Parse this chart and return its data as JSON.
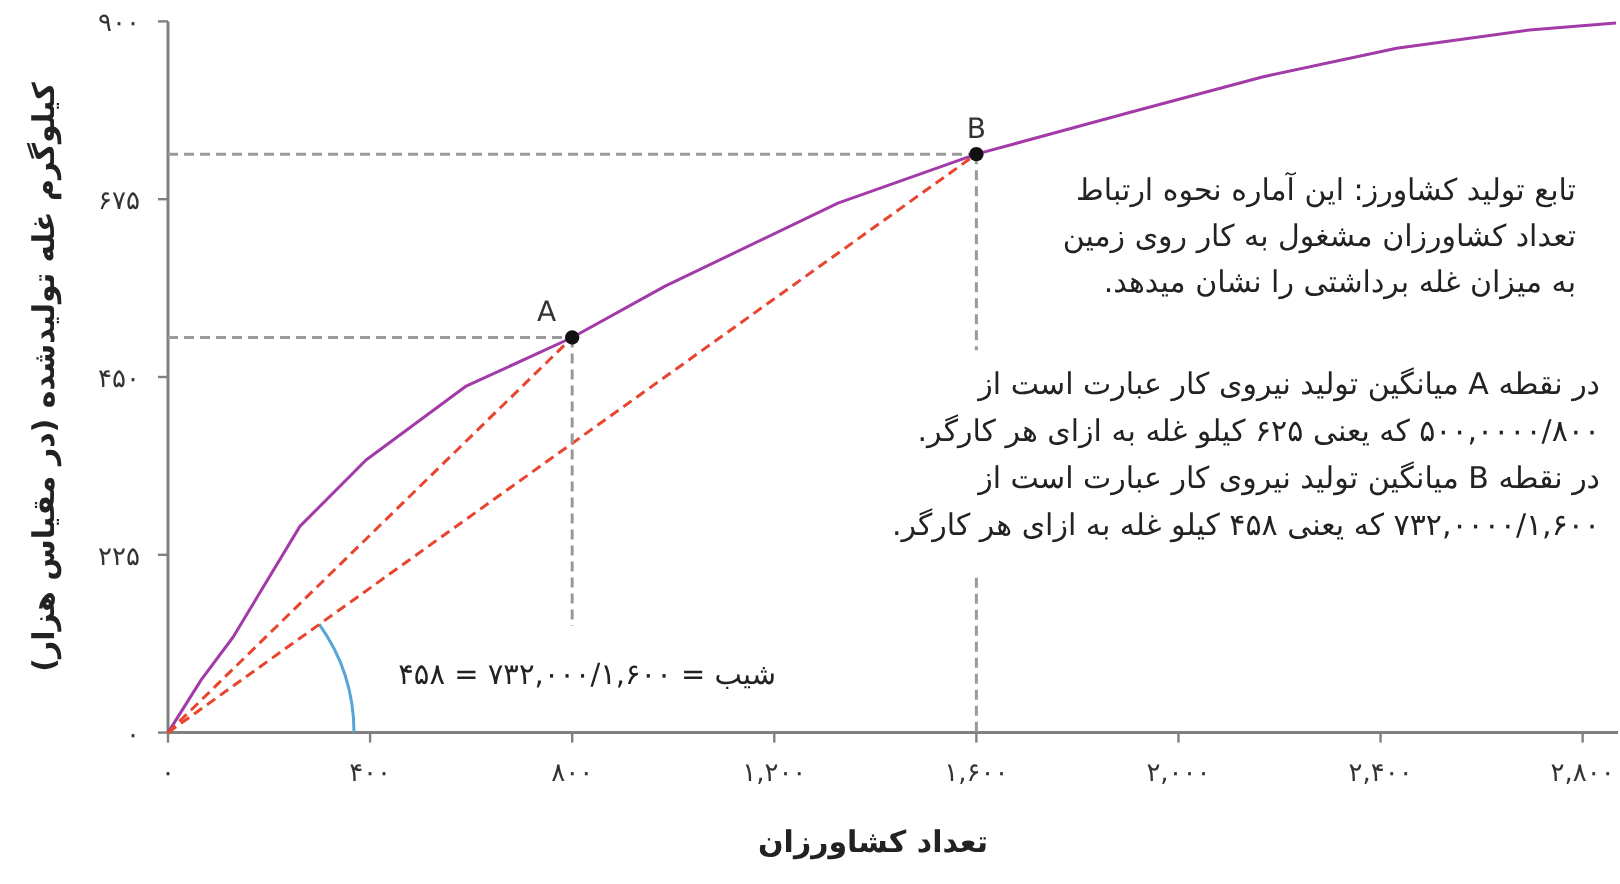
{
  "chart_data": {
    "type": "line",
    "xlabel": "تعداد کشاورزان",
    "ylabel": "کیلوگرم غله تولیدشده (در مقیاس هزار)",
    "xlim": [
      0,
      2870
    ],
    "ylim": [
      0,
      900
    ],
    "xticks": [
      {
        "value": 0,
        "label": "۰"
      },
      {
        "value": 400,
        "label": "۴۰۰"
      },
      {
        "value": 800,
        "label": "۸۰۰"
      },
      {
        "value": 1200,
        "label": "۱,۲۰۰"
      },
      {
        "value": 1600,
        "label": "۱,۶۰۰"
      },
      {
        "value": 2000,
        "label": "۲,۰۰۰"
      },
      {
        "value": 2400,
        "label": "۲,۴۰۰"
      },
      {
        "value": 2800,
        "label": "۲,۸۰۰"
      }
    ],
    "yticks": [
      {
        "value": 0,
        "label": "۰"
      },
      {
        "value": 225,
        "label": "۲۲۵"
      },
      {
        "value": 450,
        "label": "۴۵۰"
      },
      {
        "value": 675,
        "label": "۶۷۵"
      },
      {
        "value": 900,
        "label": "۹۰۰"
      }
    ],
    "series": [
      {
        "color": "#a23aa8",
        "line_style": "solid",
        "x": [
          0,
          66,
          129,
          261,
          392,
          589,
          800,
          984,
          1326,
          1600,
          1905,
          2168,
          2432,
          2695,
          2866
        ],
        "values": [
          0,
          67,
          121,
          261,
          345,
          438,
          500,
          565,
          670,
          732,
          785,
          830,
          866,
          889,
          898
        ]
      },
      {
        "color": "#e8442e",
        "line_style": "dashed",
        "x": [
          0,
          800
        ],
        "values": [
          0,
          500
        ]
      },
      {
        "color": "#e8442e",
        "line_style": "dashed",
        "x": [
          0,
          1600
        ],
        "values": [
          0,
          732
        ]
      },
      {
        "color": "#9a9a9a",
        "line_style": "dashed",
        "x": [
          0,
          800
        ],
        "values": [
          500,
          500
        ]
      },
      {
        "color": "#9a9a9a",
        "line_style": "dashed",
        "x": [
          800,
          800
        ],
        "values": [
          500,
          135
        ]
      },
      {
        "color": "#9a9a9a",
        "line_style": "dashed",
        "x": [
          0,
          1600
        ],
        "values": [
          732,
          732
        ]
      },
      {
        "color": "#9a9a9a",
        "line_style": "dashed",
        "x": [
          1600,
          1600
        ],
        "values": [
          732,
          484
        ]
      },
      {
        "color": "#9a9a9a",
        "line_style": "dashed",
        "x": [
          1600,
          1600
        ],
        "values": [
          196,
          0
        ]
      },
      {
        "type": "scatter",
        "color": "#111111",
        "marker": "circle",
        "x": [
          800,
          1600
        ],
        "values": [
          500,
          732
        ]
      }
    ],
    "annotations": [
      {
        "text": "A",
        "x": 800,
        "y": 500
      },
      {
        "text": "B",
        "x": 1600,
        "y": 732
      },
      "شیب = ۷۳۲,۰۰۰/۱,۶۰۰ = ۴۵۸",
      "تابع تولید کشاورز: این آماره نحوه ارتباط",
      "تعداد کشاورزان مشغول به کار روی زمین",
      "به میزان غله برداشتی را نشان میدهد.",
      "در نقطه A میانگین تولید نیروی کار عبارت است از",
      "۵۰۰,۰۰۰۰/۸۰۰ که یعنی ۶۲۵ کیلو غله به ازای هر کارگر.",
      "در نقطه B میانگین تولید نیروی کار عبارت است از",
      "۷۳۲,۰۰۰۰/۱,۶۰۰ که یعنی ۴۵۸ کیلو غله به ازای هر کارگر."
    ]
  }
}
